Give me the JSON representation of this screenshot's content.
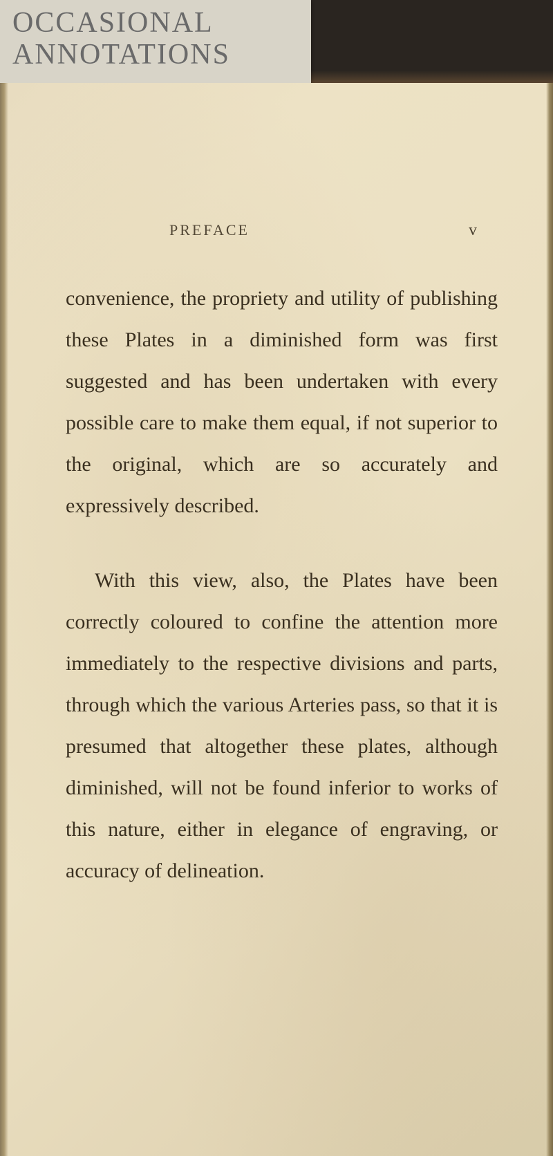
{
  "label": {
    "line1": "OCCASIONAL",
    "line2": "ANNOTATIONS"
  },
  "header": {
    "title": "PREFACE",
    "page_number": "v"
  },
  "paragraphs": {
    "p1": "convenience, the propriety and utility of publishing these Plates in a diminished form was first suggested and has been undertaken with every possible care to make them equal, if not superior to the original, which are so accurately and expressively described.",
    "p2": "With this view, also, the Plates have been correctly coloured to confine the attention more immediately to the respective divisions and parts, through which the various Arteries pass, so that it is presumed that altogether these plates, although diminished, will not be found inferior to works of this nature, either in elegance of engraving, or accuracy of delineation."
  },
  "colors": {
    "page_bg": "#ebe0c2",
    "text": "#3a3020",
    "label_bg": "#d8d4c8",
    "handwriting": "#6a6a6a"
  },
  "typography": {
    "body_fontsize": 30,
    "header_fontsize": 22,
    "handwriting_fontsize": 42,
    "line_height": 2.0
  }
}
